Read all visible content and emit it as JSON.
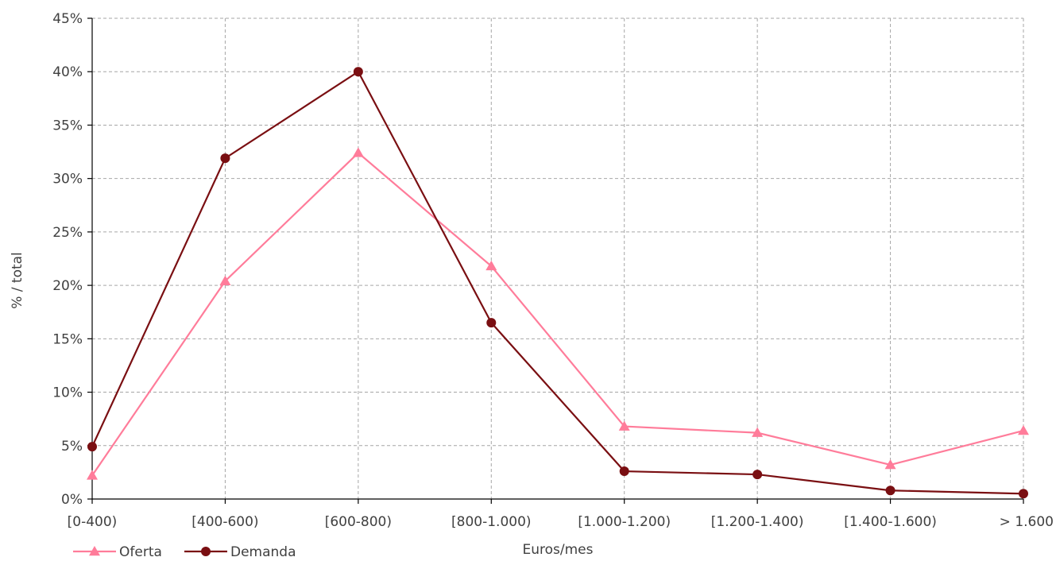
{
  "chart_data": {
    "type": "line",
    "categories": [
      "[0-400)",
      "[400-600)",
      "[600-800)",
      "[800-1.000)",
      "[1.000-1.200)",
      "[1.200-1.400)",
      "[1.400-1.600)",
      "> 1.600"
    ],
    "series": [
      {
        "name": "Oferta",
        "values": [
          2.2,
          20.4,
          32.4,
          21.8,
          6.8,
          6.2,
          3.2,
          6.4
        ],
        "color": "#ff7c9a",
        "marker": "triangle"
      },
      {
        "name": "Demanda",
        "values": [
          4.9,
          31.9,
          40.0,
          16.5,
          2.6,
          2.3,
          0.8,
          0.5
        ],
        "color": "#7a0f12",
        "marker": "circle"
      }
    ],
    "title": "",
    "xlabel": "Euros/mes",
    "ylabel": "% / total",
    "ylim": [
      0,
      45
    ],
    "yticks": [
      "0%",
      "5%",
      "10%",
      "15%",
      "20%",
      "25%",
      "30%",
      "35%",
      "40%",
      "45%"
    ],
    "grid": true,
    "legend_position": "bottom-left"
  }
}
